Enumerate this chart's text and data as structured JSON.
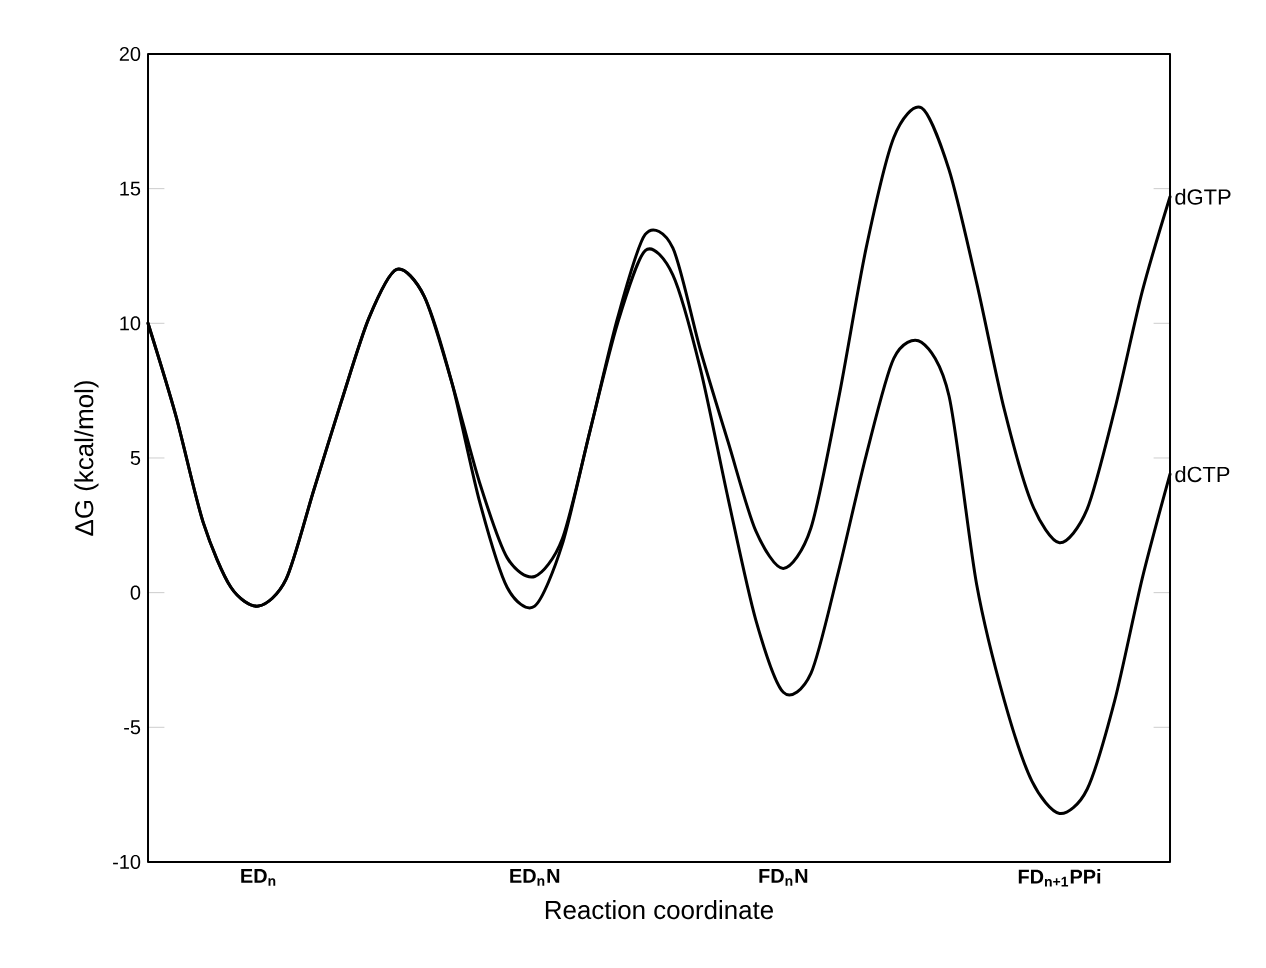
{
  "chart_data": {
    "type": "line",
    "xlabel": "Reaction coordinate",
    "ylabel": "ΔG (kcal/mol)",
    "ylim": [
      -10,
      20
    ],
    "yticks": [
      -10,
      -5,
      0,
      5,
      10,
      15,
      20
    ],
    "categories": [
      null,
      null,
      null,
      null,
      "ED$_{n}$",
      null,
      null,
      null,
      null,
      null,
      null,
      null,
      null,
      null,
      "ED$_{n}$N",
      null,
      null,
      null,
      null,
      null,
      null,
      null,
      null,
      "FD$_{n}$N",
      null,
      null,
      null,
      null,
      null,
      null,
      null,
      null,
      null,
      "FD$_{n+1}$PPi",
      null,
      null,
      null,
      null
    ],
    "marker": "none",
    "line_style": "solid",
    "series": [
      {
        "name": "dGTP",
        "color": "#000000",
        "values": [
          10,
          6.6,
          2.6,
          0.2,
          -0.5,
          0.5,
          3.8,
          7.1,
          10.2,
          12,
          11,
          7.8,
          4.1,
          1.3,
          0.6,
          2,
          6,
          10.2,
          13.3,
          12.8,
          9,
          5.6,
          2.3,
          0.9,
          2.4,
          7.2,
          12.8,
          16.9,
          18,
          15.7,
          11.5,
          6.8,
          3.3,
          1.85,
          3.1,
          6.8,
          11.2,
          14.7
        ]
      },
      {
        "name": "dCTP",
        "color": "#000000",
        "values": [
          10,
          6.6,
          2.6,
          0.2,
          -0.5,
          0.5,
          3.8,
          7.1,
          10.2,
          12,
          11,
          7.8,
          3.4,
          0.2,
          -0.5,
          1.8,
          6,
          10,
          12.7,
          11.8,
          8.3,
          3.5,
          -1,
          -3.7,
          -3,
          0.8,
          5.1,
          8.7,
          9.3,
          7.3,
          0.3,
          -4,
          -7,
          -8.2,
          -7.3,
          -4,
          0.55,
          4.4
        ]
      }
    ]
  }
}
